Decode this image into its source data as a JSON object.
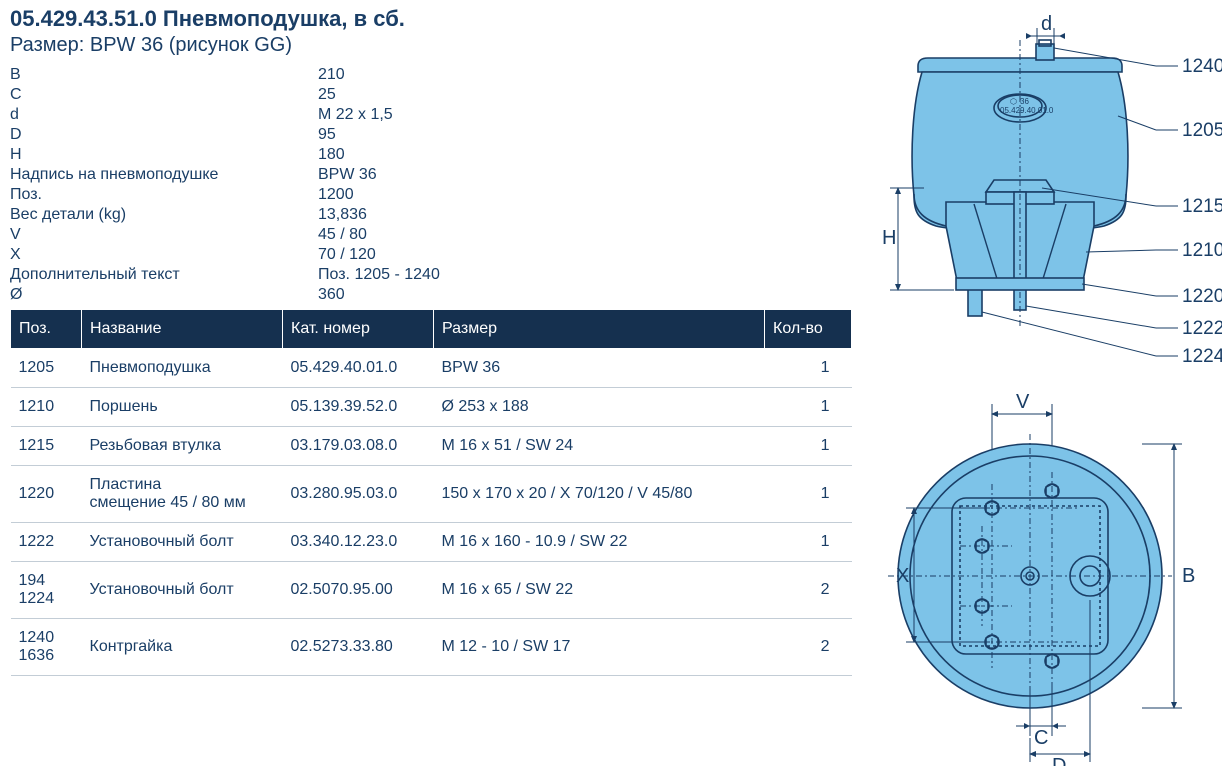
{
  "header": {
    "part_number": "05.429.43.51.0",
    "title_rest": " Пневмоподушка, в сб.",
    "subtitle_label": "Размер:",
    "subtitle_value": " BPW 36 (рисунок GG)"
  },
  "specs": [
    {
      "label": "B",
      "value": "210"
    },
    {
      "label": "C",
      "value": "25"
    },
    {
      "label": "d",
      "value": "M 22 x 1,5"
    },
    {
      "label": "D",
      "value": "95"
    },
    {
      "label": "H",
      "value": "180"
    },
    {
      "label": "Надпись на пневмоподушке",
      "value": "BPW 36"
    },
    {
      "label": "Поз.",
      "value": "1200"
    },
    {
      "label": "Вес детали (kg)",
      "value": "13,836"
    },
    {
      "label": "V",
      "value": "45 / 80"
    },
    {
      "label": "X",
      "value": "70 / 120"
    },
    {
      "label": "Дополнительный текст",
      "value": "Поз. 1205 - 1240"
    },
    {
      "label": "Ø",
      "value": "360"
    }
  ],
  "parts_table": {
    "header_bg": "#15304f",
    "header_fg": "#ffffff",
    "row_border": "#c3cdd6",
    "columns": [
      "Поз.",
      "Название",
      "Кат. номер",
      "Размер",
      "Кол-во"
    ],
    "rows": [
      {
        "pos": "1205",
        "name": "Пневмоподушка",
        "cat": "05.429.40.01.0",
        "size": "BPW 36",
        "qty": "1"
      },
      {
        "pos": "1210",
        "name": "Поршень",
        "cat": "05.139.39.52.0",
        "size": "Ø 253 x 188",
        "qty": "1"
      },
      {
        "pos": "1215",
        "name": "Резьбовая втулка",
        "cat": "03.179.03.08.0",
        "size": "M 16 x 51 / SW 24",
        "qty": "1"
      },
      {
        "pos": "1220",
        "name": "Пластина\nсмещение 45 / 80 мм",
        "cat": "03.280.95.03.0",
        "size": "150 x 170 x 20 / X 70/120 / V 45/80",
        "qty": "1"
      },
      {
        "pos": "1222",
        "name": "Установочный болт",
        "cat": "03.340.12.23.0",
        "size": "M 16 x 160 - 10.9 / SW 22",
        "qty": "1"
      },
      {
        "pos": "194\n1224",
        "name": "Установочный болт",
        "cat": "02.5070.95.00",
        "size": "M 16 x 65 / SW 22",
        "qty": "2"
      },
      {
        "pos": "1240\n1636",
        "name": "Контргайка",
        "cat": "02.5273.33.80",
        "size": "M 12 - 10 / SW 17",
        "qty": "2"
      }
    ]
  },
  "diagram": {
    "shape_fill": "#7dc3e8",
    "shape_stroke": "#1a3e66",
    "text_color": "#1a3e66",
    "side_labels": [
      "d",
      "H"
    ],
    "callouts_side": [
      "1240",
      "1205",
      "1215",
      "1210",
      "1220",
      "1222",
      "1224"
    ],
    "bottom_labels": [
      "V",
      "X",
      "B",
      "C",
      "D"
    ],
    "marking_top": "36",
    "marking_bottom": "05.429.40.01.0"
  }
}
